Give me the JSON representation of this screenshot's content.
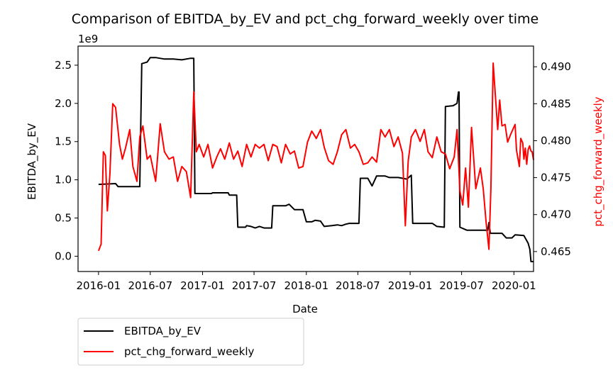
{
  "chart_data": {
    "type": "line",
    "title": "Comparison of EBITDA_by_EV and pct_chg_forward_weekly over time",
    "xlabel": "Date",
    "ylabel_left": "EBITDA_by_EV",
    "ylabel_right": "pct_chg_forward_weekly",
    "left_axis_offset_label": "1e9",
    "x_ticks": [
      "2016-01",
      "2016-07",
      "2017-01",
      "2017-07",
      "2018-01",
      "2018-07",
      "2019-01",
      "2019-07",
      "2020-01"
    ],
    "x_range": [
      "2015-10-21",
      "2020-03-10"
    ],
    "ylim_left": [
      -0.2,
      2.75
    ],
    "yticks_left": [
      "0.0",
      "0.5",
      "1.0",
      "1.5",
      "2.0",
      "2.5"
    ],
    "ylim_right": [
      0.4623,
      0.4928
    ],
    "yticks_right": [
      "0.465",
      "0.470",
      "0.475",
      "0.480",
      "0.485",
      "0.490"
    ],
    "legend_position": "below-left",
    "grid": false,
    "series": [
      {
        "name": "EBITDA_by_EV",
        "color": "#000000",
        "axis": "left",
        "unit_scale": "1e9",
        "points": [
          [
            "2016-01-01",
            0.94
          ],
          [
            "2016-03-01",
            0.95
          ],
          [
            "2016-03-10",
            0.91
          ],
          [
            "2016-05-25",
            0.91
          ],
          [
            "2016-06-01",
            2.52
          ],
          [
            "2016-06-20",
            2.54
          ],
          [
            "2016-07-01",
            2.6
          ],
          [
            "2016-07-20",
            2.6
          ],
          [
            "2016-08-20",
            2.58
          ],
          [
            "2016-09-20",
            2.58
          ],
          [
            "2016-10-20",
            2.57
          ],
          [
            "2016-11-20",
            2.59
          ],
          [
            "2016-12-01",
            2.59
          ],
          [
            "2016-12-05",
            0.82
          ],
          [
            "2017-02-01",
            0.82
          ],
          [
            "2017-02-05",
            0.83
          ],
          [
            "2017-04-01",
            0.83
          ],
          [
            "2017-04-05",
            0.8
          ],
          [
            "2017-05-01",
            0.8
          ],
          [
            "2017-05-05",
            0.38
          ],
          [
            "2017-06-01",
            0.38
          ],
          [
            "2017-06-05",
            0.4
          ],
          [
            "2017-06-20",
            0.39
          ],
          [
            "2017-07-05",
            0.37
          ],
          [
            "2017-07-20",
            0.39
          ],
          [
            "2017-08-05",
            0.37
          ],
          [
            "2017-09-01",
            0.37
          ],
          [
            "2017-09-05",
            0.66
          ],
          [
            "2017-10-20",
            0.66
          ],
          [
            "2017-11-01",
            0.68
          ],
          [
            "2017-11-20",
            0.61
          ],
          [
            "2017-12-20",
            0.61
          ],
          [
            "2018-01-01",
            0.45
          ],
          [
            "2018-01-20",
            0.45
          ],
          [
            "2018-02-01",
            0.47
          ],
          [
            "2018-02-20",
            0.46
          ],
          [
            "2018-03-05",
            0.39
          ],
          [
            "2018-04-01",
            0.4
          ],
          [
            "2018-04-20",
            0.41
          ],
          [
            "2018-05-05",
            0.4
          ],
          [
            "2018-05-20",
            0.42
          ],
          [
            "2018-06-01",
            0.43
          ],
          [
            "2018-07-05",
            0.43
          ],
          [
            "2018-07-10",
            1.02
          ],
          [
            "2018-08-05",
            1.02
          ],
          [
            "2018-08-20",
            0.92
          ],
          [
            "2018-09-05",
            1.05
          ],
          [
            "2018-10-05",
            1.05
          ],
          [
            "2018-10-20",
            1.03
          ],
          [
            "2018-11-20",
            1.03
          ],
          [
            "2018-12-20",
            1.01
          ],
          [
            "2019-01-05",
            1.06
          ],
          [
            "2019-01-10",
            0.43
          ],
          [
            "2019-02-05",
            0.43
          ],
          [
            "2019-03-05",
            0.43
          ],
          [
            "2019-03-20",
            0.43
          ],
          [
            "2019-04-05",
            0.39
          ],
          [
            "2019-05-01",
            0.38
          ],
          [
            "2019-05-05",
            1.96
          ],
          [
            "2019-06-01",
            1.97
          ],
          [
            "2019-06-15",
            2.0
          ],
          [
            "2019-06-20",
            2.15
          ],
          [
            "2019-06-22",
            2.15
          ],
          [
            "2019-06-25",
            0.38
          ],
          [
            "2019-07-20",
            0.34
          ],
          [
            "2019-09-01",
            0.34
          ],
          [
            "2019-10-01",
            0.34
          ],
          [
            "2019-10-05",
            0.44
          ],
          [
            "2019-10-10",
            0.3
          ],
          [
            "2019-11-20",
            0.3
          ],
          [
            "2019-12-05",
            0.24
          ],
          [
            "2019-12-25",
            0.24
          ],
          [
            "2020-01-05",
            0.28
          ],
          [
            "2020-02-05",
            0.27
          ],
          [
            "2020-02-20",
            0.17
          ],
          [
            "2020-02-26",
            0.09
          ],
          [
            "2020-03-01",
            -0.07
          ],
          [
            "2020-03-10",
            -0.07
          ]
        ]
      },
      {
        "name": "pct_chg_forward_weekly",
        "color": "#ff0000",
        "axis": "right",
        "points": [
          [
            "2016-01-01",
            0.4651
          ],
          [
            "2016-01-10",
            0.466
          ],
          [
            "2016-01-18",
            0.4785
          ],
          [
            "2016-01-25",
            0.478
          ],
          [
            "2016-02-01",
            0.4705
          ],
          [
            "2016-02-10",
            0.4755
          ],
          [
            "2016-02-20",
            0.485
          ],
          [
            "2016-03-01",
            0.4845
          ],
          [
            "2016-03-15",
            0.4795
          ],
          [
            "2016-03-25",
            0.4775
          ],
          [
            "2016-04-05",
            0.479
          ],
          [
            "2016-04-20",
            0.4815
          ],
          [
            "2016-05-01",
            0.4765
          ],
          [
            "2016-05-15",
            0.4745
          ],
          [
            "2016-05-25",
            0.4805
          ],
          [
            "2016-06-05",
            0.482
          ],
          [
            "2016-06-20",
            0.4775
          ],
          [
            "2016-07-01",
            0.478
          ],
          [
            "2016-07-20",
            0.4745
          ],
          [
            "2016-08-05",
            0.4823
          ],
          [
            "2016-08-20",
            0.4785
          ],
          [
            "2016-09-05",
            0.4775
          ],
          [
            "2016-09-20",
            0.4778
          ],
          [
            "2016-10-05",
            0.4745
          ],
          [
            "2016-10-20",
            0.4765
          ],
          [
            "2016-11-05",
            0.4758
          ],
          [
            "2016-11-20",
            0.4723
          ],
          [
            "2016-12-01",
            0.4866
          ],
          [
            "2016-12-10",
            0.4785
          ],
          [
            "2016-12-20",
            0.4795
          ],
          [
            "2017-01-05",
            0.4778
          ],
          [
            "2017-01-20",
            0.4795
          ],
          [
            "2017-02-05",
            0.4763
          ],
          [
            "2017-02-20",
            0.4778
          ],
          [
            "2017-03-05",
            0.4789
          ],
          [
            "2017-03-20",
            0.4775
          ],
          [
            "2017-04-05",
            0.4797
          ],
          [
            "2017-04-20",
            0.4775
          ],
          [
            "2017-05-05",
            0.4786
          ],
          [
            "2017-05-20",
            0.4765
          ],
          [
            "2017-06-05",
            0.4795
          ],
          [
            "2017-06-20",
            0.4778
          ],
          [
            "2017-07-05",
            0.4795
          ],
          [
            "2017-07-20",
            0.479
          ],
          [
            "2017-08-05",
            0.4795
          ],
          [
            "2017-08-20",
            0.4773
          ],
          [
            "2017-09-05",
            0.4795
          ],
          [
            "2017-09-20",
            0.4792
          ],
          [
            "2017-10-05",
            0.477
          ],
          [
            "2017-10-20",
            0.4795
          ],
          [
            "2017-11-05",
            0.4782
          ],
          [
            "2017-11-20",
            0.4786
          ],
          [
            "2017-12-05",
            0.4763
          ],
          [
            "2017-12-20",
            0.4765
          ],
          [
            "2018-01-05",
            0.4798
          ],
          [
            "2018-01-20",
            0.4813
          ],
          [
            "2018-02-05",
            0.4803
          ],
          [
            "2018-02-20",
            0.4815
          ],
          [
            "2018-03-05",
            0.4791
          ],
          [
            "2018-03-20",
            0.4773
          ],
          [
            "2018-04-05",
            0.4768
          ],
          [
            "2018-04-20",
            0.4785
          ],
          [
            "2018-05-05",
            0.4808
          ],
          [
            "2018-05-20",
            0.4815
          ],
          [
            "2018-06-05",
            0.479
          ],
          [
            "2018-06-20",
            0.4795
          ],
          [
            "2018-07-05",
            0.4785
          ],
          [
            "2018-07-20",
            0.4768
          ],
          [
            "2018-08-05",
            0.477
          ],
          [
            "2018-08-20",
            0.4778
          ],
          [
            "2018-09-05",
            0.4771
          ],
          [
            "2018-09-20",
            0.4815
          ],
          [
            "2018-10-05",
            0.4805
          ],
          [
            "2018-10-20",
            0.4815
          ],
          [
            "2018-11-05",
            0.4792
          ],
          [
            "2018-11-20",
            0.4805
          ],
          [
            "2018-12-05",
            0.4783
          ],
          [
            "2018-12-15",
            0.4685
          ],
          [
            "2018-12-25",
            0.4772
          ],
          [
            "2019-01-05",
            0.4805
          ],
          [
            "2019-01-20",
            0.4815
          ],
          [
            "2019-02-05",
            0.4799
          ],
          [
            "2019-02-20",
            0.4815
          ],
          [
            "2019-03-05",
            0.4785
          ],
          [
            "2019-03-20",
            0.4777
          ],
          [
            "2019-04-05",
            0.4805
          ],
          [
            "2019-04-20",
            0.4785
          ],
          [
            "2019-05-05",
            0.4782
          ],
          [
            "2019-05-20",
            0.4762
          ],
          [
            "2019-06-05",
            0.4778
          ],
          [
            "2019-06-15",
            0.4815
          ],
          [
            "2019-06-25",
            0.4732
          ],
          [
            "2019-07-05",
            0.4713
          ],
          [
            "2019-07-15",
            0.4763
          ],
          [
            "2019-07-25",
            0.471
          ],
          [
            "2019-08-05",
            0.4818
          ],
          [
            "2019-08-20",
            0.4735
          ],
          [
            "2019-09-05",
            0.4763
          ],
          [
            "2019-09-15",
            0.4735
          ],
          [
            "2019-09-25",
            0.469
          ],
          [
            "2019-10-05",
            0.4653
          ],
          [
            "2019-10-12",
            0.4735
          ],
          [
            "2019-10-20",
            0.4905
          ],
          [
            "2019-10-28",
            0.486
          ],
          [
            "2019-11-05",
            0.4815
          ],
          [
            "2019-11-12",
            0.4855
          ],
          [
            "2019-11-20",
            0.482
          ],
          [
            "2019-12-01",
            0.4822
          ],
          [
            "2019-12-10",
            0.4798
          ],
          [
            "2019-12-20",
            0.4808
          ],
          [
            "2020-01-05",
            0.4822
          ],
          [
            "2020-01-10",
            0.4787
          ],
          [
            "2020-01-20",
            0.4765
          ],
          [
            "2020-01-25",
            0.4803
          ],
          [
            "2020-02-01",
            0.4797
          ],
          [
            "2020-02-05",
            0.4775
          ],
          [
            "2020-02-10",
            0.479
          ],
          [
            "2020-02-15",
            0.4768
          ],
          [
            "2020-02-20",
            0.4788
          ],
          [
            "2020-02-25",
            0.4793
          ],
          [
            "2020-03-01",
            0.4786
          ],
          [
            "2020-03-05",
            0.4785
          ],
          [
            "2020-03-10",
            0.4774
          ]
        ]
      }
    ]
  }
}
